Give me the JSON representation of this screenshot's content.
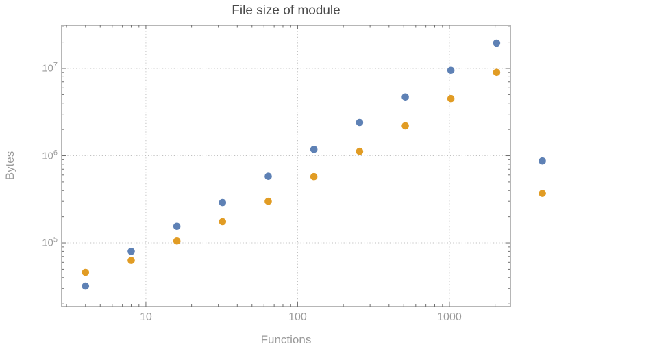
{
  "chart_data": {
    "type": "scatter",
    "title": "File size of module",
    "xlabel": "Functions",
    "ylabel": "Bytes",
    "x_scale": "log",
    "y_scale": "log",
    "grid": "dotted-major-decades",
    "legend": "none",
    "frame_ticks": "all-four-sides",
    "xlim_log10": [
      0.445,
      3.402
    ],
    "ylim_log10": [
      4.271,
      7.494
    ],
    "x": [
      4,
      8,
      16,
      32,
      64,
      128,
      256,
      512,
      1024,
      2048,
      4096
    ],
    "series": [
      {
        "name": "blue",
        "color": "#5e81b5",
        "values": [
          32000,
          80000,
          155000,
          290000,
          580000,
          1180000,
          2400000,
          4700000,
          9500000,
          19500000,
          870000
        ]
      },
      {
        "name": "orange",
        "color": "#e19c24",
        "values": [
          46000,
          63000,
          105000,
          175000,
          300000,
          575000,
          1120000,
          2200000,
          4500000,
          9000000,
          370000
        ]
      }
    ],
    "x_ticks": [
      {
        "value": 10,
        "label": "10"
      },
      {
        "value": 100,
        "label": "100"
      },
      {
        "value": 1000,
        "label": "1000"
      }
    ],
    "y_ticks": [
      {
        "value": 100000,
        "mantissa": "10",
        "exponent": "5"
      },
      {
        "value": 1000000,
        "mantissa": "10",
        "exponent": "6"
      },
      {
        "value": 10000000,
        "mantissa": "10",
        "exponent": "7"
      }
    ],
    "colors": {
      "frame": "#6e6e6e",
      "grid": "#bfbfbf",
      "tick_label": "#9a9a9a",
      "title": "#4a4a4a",
      "background": "#ffffff"
    },
    "point_radius_px": 5.3
  }
}
